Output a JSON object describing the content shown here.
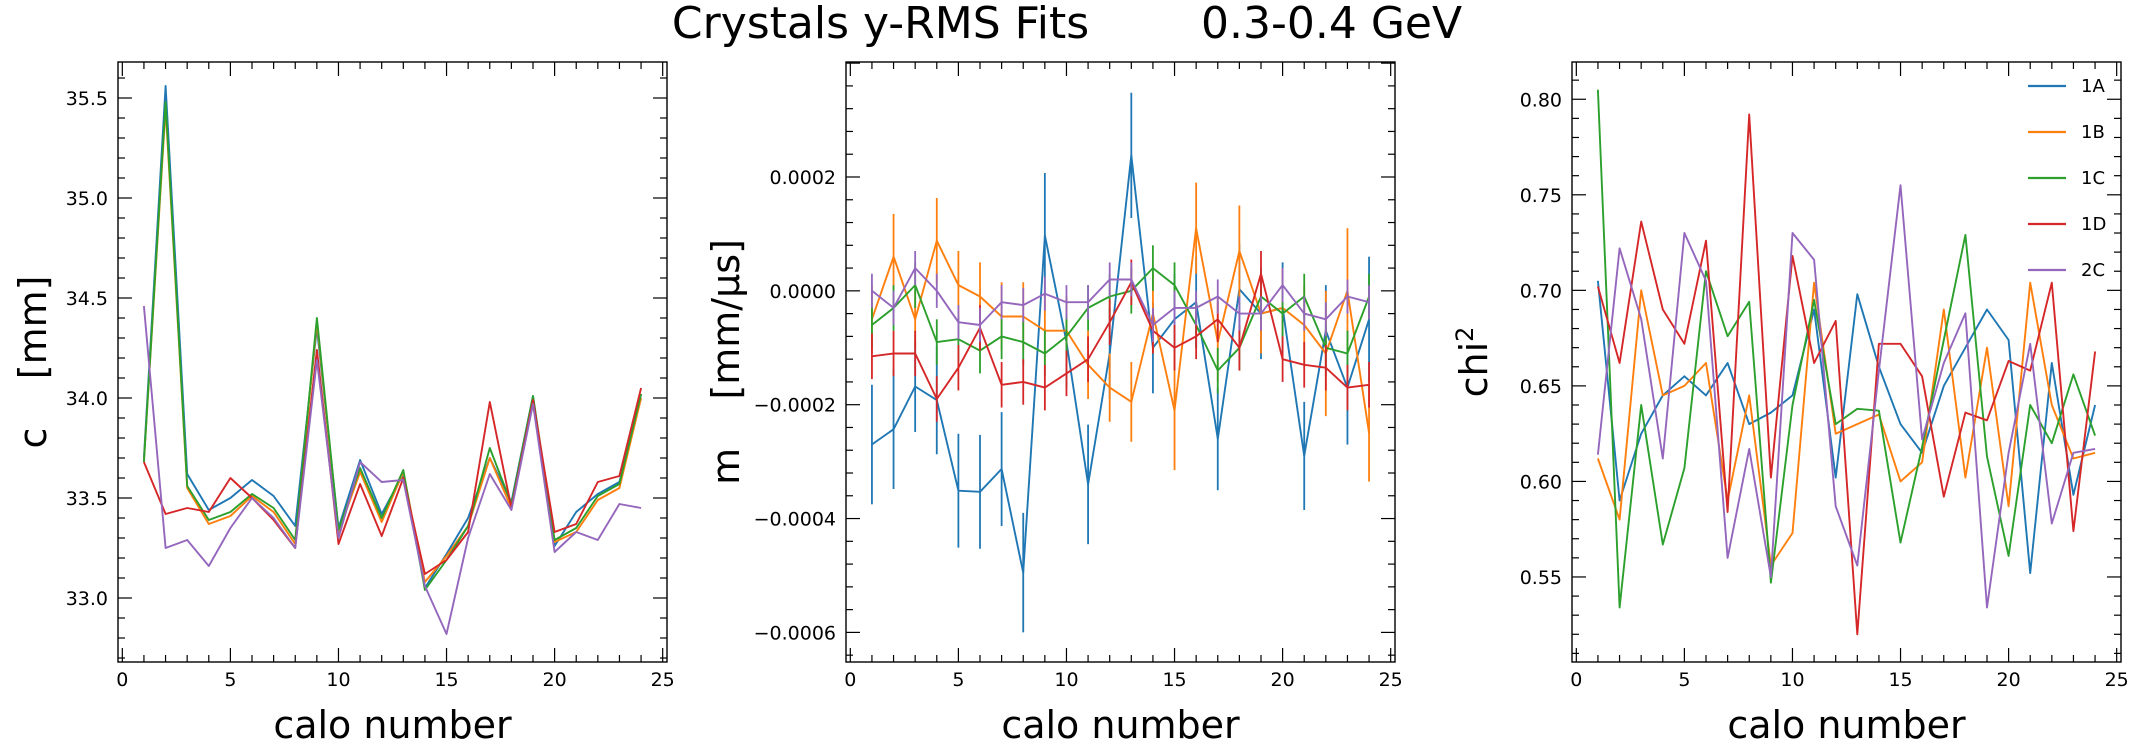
{
  "title": "Crystals y-RMS Fits        0.3-0.4 GeV",
  "colors": {
    "1A": "#1f77b4",
    "1B": "#ff7f0e",
    "1C": "#2ca02c",
    "1D": "#d62728",
    "2C": "#9467bd"
  },
  "chart_data": [
    {
      "type": "line",
      "xlabel": "calo number",
      "ylabel": "c    [mm]",
      "xlim": [
        -0.2,
        25.2
      ],
      "ylim": [
        32.68,
        35.68
      ],
      "xticks": [
        0,
        5,
        10,
        15,
        20,
        25
      ],
      "xticklabels": [
        "0",
        "5",
        "10",
        "15",
        "20",
        "25"
      ],
      "yticks": [
        33.0,
        33.5,
        34.0,
        34.5,
        35.0,
        35.5
      ],
      "yticklabels": [
        "33.0",
        "33.5",
        "34.0",
        "34.5",
        "35.0",
        "35.5"
      ],
      "grid": false,
      "x": [
        1,
        2,
        3,
        4,
        5,
        6,
        7,
        8,
        9,
        10,
        11,
        12,
        13,
        14,
        15,
        16,
        17,
        18,
        19,
        20,
        21,
        22,
        23,
        24
      ],
      "series": [
        {
          "name": "1A",
          "color": "#1f77b4",
          "values": [
            33.7,
            35.56,
            33.62,
            33.44,
            33.5,
            33.59,
            33.51,
            33.36,
            34.35,
            33.35,
            33.69,
            33.42,
            33.62,
            33.05,
            33.22,
            33.4,
            33.7,
            33.48,
            34.01,
            33.26,
            33.43,
            33.52,
            33.58,
            34.02
          ]
        },
        {
          "name": "1B",
          "color": "#ff7f0e",
          "values": [
            33.68,
            35.45,
            33.55,
            33.37,
            33.41,
            33.51,
            33.43,
            33.27,
            34.38,
            33.33,
            33.63,
            33.38,
            33.63,
            33.08,
            33.21,
            33.36,
            33.7,
            33.45,
            34.0,
            33.28,
            33.33,
            33.49,
            33.55,
            34.0
          ]
        },
        {
          "name": "1C",
          "color": "#2ca02c",
          "values": [
            33.68,
            35.48,
            33.56,
            33.39,
            33.43,
            33.52,
            33.45,
            33.29,
            34.4,
            33.34,
            33.65,
            33.4,
            33.64,
            33.04,
            33.19,
            33.36,
            33.75,
            33.47,
            34.01,
            33.29,
            33.35,
            33.51,
            33.57,
            34.02
          ]
        },
        {
          "name": "1D",
          "color": "#d62728",
          "values": [
            33.68,
            33.42,
            33.45,
            33.43,
            33.6,
            33.5,
            33.39,
            33.25,
            34.24,
            33.27,
            33.57,
            33.31,
            33.6,
            33.12,
            33.19,
            33.33,
            33.98,
            33.45,
            33.99,
            33.33,
            33.37,
            33.58,
            33.61,
            34.05
          ]
        },
        {
          "name": "2C",
          "color": "#9467bd",
          "values": [
            34.46,
            33.25,
            33.29,
            33.16,
            33.35,
            33.5,
            33.4,
            33.25,
            34.19,
            33.3,
            33.68,
            33.58,
            33.59,
            33.06,
            32.82,
            33.3,
            33.62,
            33.44,
            33.97,
            33.23,
            33.33,
            33.29,
            33.47,
            33.45
          ]
        }
      ]
    },
    {
      "type": "line",
      "xlabel": "calo number",
      "ylabel": "m    [mm/μs]",
      "xlim": [
        -0.2,
        25.2
      ],
      "ylim": [
        -0.000652,
        0.000402
      ],
      "xticks": [
        0,
        5,
        10,
        15,
        20,
        25
      ],
      "xticklabels": [
        "0",
        "5",
        "10",
        "15",
        "20",
        "25"
      ],
      "yticks": [
        -0.0006,
        -0.0004,
        -0.0002,
        0.0,
        0.0002
      ],
      "yticklabels": [
        "−0.0006",
        "−0.0004",
        "−0.0002",
        "0.0000",
        "0.0002"
      ],
      "grid": false,
      "error_bars": true,
      "x": [
        1,
        2,
        3,
        4,
        5,
        6,
        7,
        8,
        9,
        10,
        11,
        12,
        13,
        14,
        15,
        16,
        17,
        18,
        19,
        20,
        21,
        22,
        23,
        24
      ],
      "series": [
        {
          "name": "1A",
          "color": "#1f77b4",
          "values": [
            -0.00027,
            -0.000243,
            -0.000168,
            -0.000192,
            -0.000351,
            -0.000353,
            -0.000313,
            -0.000495,
            9.7e-05,
            -9e-05,
            -0.00034,
            -0.00011,
            0.000238,
            -0.0001,
            -5e-05,
            -2e-05,
            -0.00026,
            3e-06,
            -4e-05,
            -3e-05,
            -0.00029,
            -7e-05,
            -0.00017,
            -5e-05
          ],
          "errors": [
            0.000105,
            0.000105,
            8e-05,
            9.5e-05,
            0.0001,
            0.0001,
            0.0001,
            0.000105,
            0.00011,
            8e-05,
            0.000105,
            8e-05,
            0.00011,
            8e-05,
            8e-05,
            8e-05,
            9e-05,
            8e-05,
            8e-05,
            8e-05,
            9.5e-05,
            8e-05,
            0.0001,
            0.00011
          ]
        },
        {
          "name": "1B",
          "color": "#ff7f0e",
          "values": [
            -5e-05,
            6e-05,
            -5e-05,
            8.8e-05,
            1e-05,
            -1e-05,
            -4.5e-05,
            -4.5e-05,
            -7e-05,
            -7e-05,
            -0.00013,
            -0.00017,
            -0.000195,
            -4e-05,
            -0.00021,
            0.00011,
            -9e-05,
            7e-05,
            -4e-05,
            -3e-05,
            -6e-05,
            -0.00011,
            0.0,
            -0.00025
          ],
          "errors": [
            6e-05,
            7.5e-05,
            5e-05,
            7.5e-05,
            6e-05,
            6e-05,
            6e-05,
            6e-05,
            6e-05,
            6e-05,
            6e-05,
            6e-05,
            7e-05,
            7e-05,
            0.000105,
            8e-05,
            7e-05,
            8e-05,
            7e-05,
            7e-05,
            7e-05,
            0.00011,
            0.00011,
            8.5e-05
          ]
        },
        {
          "name": "1C",
          "color": "#2ca02c",
          "values": [
            -6e-05,
            -3e-05,
            1e-05,
            -9e-05,
            -8.5e-05,
            -0.000105,
            -8e-05,
            -9e-05,
            -0.00011,
            -8e-05,
            -3e-05,
            -1e-05,
            0.0,
            4e-05,
            1e-05,
            -6e-05,
            -0.00014,
            -0.0001,
            -1e-05,
            -4e-05,
            -1e-05,
            -0.0001,
            -0.00011,
            -1e-05
          ],
          "errors": [
            4e-05,
            4e-05,
            4e-05,
            4e-05,
            4e-05,
            4e-05,
            4e-05,
            4e-05,
            4e-05,
            4e-05,
            4e-05,
            4e-05,
            4e-05,
            4e-05,
            4e-05,
            4e-05,
            4e-05,
            4e-05,
            4e-05,
            4e-05,
            4e-05,
            4e-05,
            4e-05,
            4e-05
          ]
        },
        {
          "name": "1D",
          "color": "#d62728",
          "values": [
            -0.000115,
            -0.00011,
            -0.00011,
            -0.00019,
            -0.000135,
            -6.5e-05,
            -0.000165,
            -0.00016,
            -0.00017,
            -0.000145,
            -0.00012,
            -5.5e-05,
            1.5e-05,
            -7e-05,
            -0.0001,
            -8e-05,
            -5e-05,
            -0.0001,
            3e-05,
            -0.00012,
            -0.00013,
            -0.000135,
            -0.00017,
            -0.000165
          ],
          "errors": [
            4e-05,
            4e-05,
            4e-05,
            4e-05,
            4e-05,
            4e-05,
            4e-05,
            4e-05,
            4e-05,
            4e-05,
            4e-05,
            4e-05,
            4e-05,
            4e-05,
            4e-05,
            4e-05,
            4e-05,
            4e-05,
            4e-05,
            4e-05,
            4e-05,
            4e-05,
            4e-05,
            4e-05
          ]
        },
        {
          "name": "2C",
          "color": "#9467bd",
          "values": [
            0.0,
            -3e-05,
            4e-05,
            0.0,
            -5.5e-05,
            -6e-05,
            -2e-05,
            -2.5e-05,
            -5e-06,
            -2e-05,
            -2e-05,
            2e-05,
            2e-05,
            -6e-05,
            -3e-05,
            -3e-05,
            -1e-05,
            -4e-05,
            -4e-05,
            1e-05,
            -4e-05,
            -5e-05,
            -1e-05,
            -2e-05
          ],
          "errors": [
            3e-05,
            3e-05,
            3e-05,
            3e-05,
            3e-05,
            3e-05,
            3e-05,
            3e-05,
            3e-05,
            3e-05,
            3e-05,
            3e-05,
            3e-05,
            3e-05,
            3e-05,
            3e-05,
            3e-05,
            3e-05,
            3e-05,
            3e-05,
            3e-05,
            3e-05,
            3e-05,
            3e-05
          ]
        }
      ]
    },
    {
      "type": "line",
      "xlabel": "calo number",
      "ylabel": "chi",
      "ylabel_sup": "2",
      "xlim": [
        -0.2,
        25.2
      ],
      "ylim": [
        0.5055,
        0.8195
      ],
      "xticks": [
        0,
        5,
        10,
        15,
        20,
        25
      ],
      "xticklabels": [
        "0",
        "5",
        "10",
        "15",
        "20",
        "25"
      ],
      "yticks": [
        0.55,
        0.6,
        0.65,
        0.7,
        0.75,
        0.8
      ],
      "yticklabels": [
        "0.55",
        "0.60",
        "0.65",
        "0.70",
        "0.75",
        "0.80"
      ],
      "grid": false,
      "legend": "top-right",
      "x": [
        1,
        2,
        3,
        4,
        5,
        6,
        7,
        8,
        9,
        10,
        11,
        12,
        13,
        14,
        15,
        16,
        17,
        18,
        19,
        20,
        21,
        22,
        23,
        24
      ],
      "series": [
        {
          "name": "1A",
          "color": "#1f77b4",
          "values": [
            0.705,
            0.59,
            0.625,
            0.645,
            0.655,
            0.645,
            0.662,
            0.63,
            0.636,
            0.645,
            0.69,
            0.602,
            0.698,
            0.66,
            0.63,
            0.615,
            0.65,
            0.67,
            0.69,
            0.674,
            0.552,
            0.662,
            0.593,
            0.64
          ]
        },
        {
          "name": "1B",
          "color": "#ff7f0e",
          "values": [
            0.612,
            0.58,
            0.7,
            0.645,
            0.65,
            0.662,
            0.59,
            0.645,
            0.556,
            0.573,
            0.704,
            0.625,
            0.63,
            0.635,
            0.6,
            0.61,
            0.69,
            0.602,
            0.67,
            0.587,
            0.704,
            0.64,
            0.612,
            0.615
          ]
        },
        {
          "name": "1C",
          "color": "#2ca02c",
          "values": [
            0.805,
            0.534,
            0.64,
            0.567,
            0.607,
            0.71,
            0.676,
            0.694,
            0.547,
            0.64,
            0.695,
            0.63,
            0.638,
            0.637,
            0.568,
            0.618,
            0.674,
            0.729,
            0.613,
            0.561,
            0.64,
            0.62,
            0.656,
            0.624
          ]
        },
        {
          "name": "1D",
          "color": "#d62728",
          "values": [
            0.702,
            0.662,
            0.736,
            0.69,
            0.672,
            0.726,
            0.584,
            0.792,
            0.602,
            0.718,
            0.662,
            0.684,
            0.52,
            0.672,
            0.672,
            0.655,
            0.592,
            0.636,
            0.632,
            0.663,
            0.658,
            0.704,
            0.574,
            0.668
          ]
        },
        {
          "name": "2C",
          "color": "#9467bd",
          "values": [
            0.614,
            0.722,
            0.685,
            0.612,
            0.73,
            0.705,
            0.56,
            0.617,
            0.55,
            0.73,
            0.716,
            0.587,
            0.556,
            0.658,
            0.755,
            0.622,
            0.662,
            0.688,
            0.534,
            0.615,
            0.672,
            0.578,
            0.615,
            0.617
          ]
        }
      ]
    }
  ]
}
